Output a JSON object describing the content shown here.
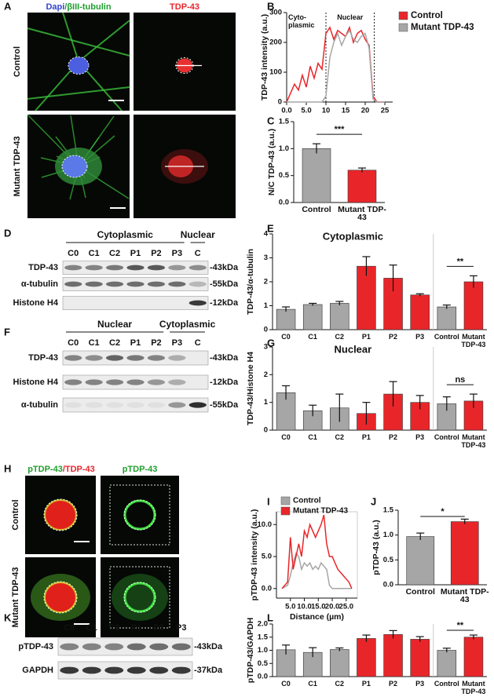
{
  "panels": {
    "A": {
      "letter": "A",
      "title_parts": [
        {
          "text": "Dapi",
          "color": "#3344cc"
        },
        {
          "text": "/βIII-tubulin",
          "color": "#1e9e2e"
        }
      ],
      "channel": {
        "text": "TDP-43",
        "color": "#e8262a"
      },
      "rows": [
        "Control",
        "Mutant TDP-43"
      ]
    },
    "D": {
      "letter": "D",
      "groups": [
        "Cytoplasmic",
        "Nuclear"
      ],
      "lanes": [
        "C0",
        "C1",
        "C2",
        "P1",
        "P2",
        "P3",
        "C"
      ],
      "rows": [
        "TDP-43",
        "α-tubulin",
        "Histone H4"
      ],
      "sizes": [
        "-43kDa",
        "-55kDa",
        "-12kDa"
      ]
    },
    "F": {
      "letter": "F",
      "groups": [
        "Nuclear",
        "Cytoplasmic"
      ],
      "lanes": [
        "C0",
        "C1",
        "C2",
        "P1",
        "P2",
        "P3",
        "C"
      ],
      "rows": [
        "TDP-43",
        "Histone H4",
        "α-tubulin"
      ],
      "sizes": [
        "-43kDa",
        "-12kDa",
        "-55kDa"
      ]
    },
    "H": {
      "letter": "H",
      "title_parts": [
        {
          "text": "pTDP-43",
          "color": "#1e9e2e"
        },
        {
          "text": "/TDP-43",
          "color": "#e8262a"
        }
      ],
      "channel": {
        "text": "pTDP-43",
        "color": "#1e9e2e"
      },
      "rows": [
        "Control",
        "Mutant TDP-43"
      ]
    },
    "K": {
      "letter": "K",
      "lanes": [
        "C0",
        "C1",
        "C2",
        "P1",
        "P2",
        "P3"
      ],
      "rows": [
        "pTDP-43",
        "GAPDH"
      ],
      "sizes": [
        "-43kDa",
        "-37kDa"
      ]
    }
  },
  "chart_data": [
    {
      "type": "line",
      "panel": "B",
      "y_label": "TDP-43 intensity (a.u.)",
      "annotations": [
        "Cyto-plasmic",
        "Nuclear"
      ],
      "vlines": [
        10,
        22.3
      ],
      "legend": "right",
      "x": [
        0,
        1,
        2,
        3,
        4,
        5,
        6,
        7,
        8,
        9,
        10,
        11,
        12,
        13,
        14,
        15,
        16,
        17,
        18,
        19,
        20,
        21,
        22,
        23,
        24,
        25
      ],
      "series": [
        {
          "name": "Control",
          "color": "#e8262a",
          "values": [
            0,
            30,
            60,
            40,
            90,
            50,
            120,
            80,
            130,
            110,
            230,
            250,
            210,
            240,
            230,
            220,
            250,
            200,
            230,
            240,
            210,
            190,
            20,
            0,
            0,
            0
          ]
        },
        {
          "name": "Mutant TDP-43",
          "color": "#a6a6a6",
          "values": [
            0,
            0,
            0,
            0,
            0,
            0,
            0,
            0,
            0,
            0,
            20,
            150,
            200,
            230,
            190,
            220,
            240,
            210,
            200,
            220,
            230,
            180,
            10,
            0,
            0,
            0
          ]
        }
      ],
      "xlim": [
        0,
        27
      ],
      "xticks": [
        {
          "value": 0,
          "label": "0.0"
        },
        {
          "value": 5,
          "label": "5.0"
        },
        10,
        15,
        20,
        25
      ],
      "ylim": [
        0,
        300
      ],
      "yticks": [
        0,
        100,
        200,
        300
      ]
    },
    {
      "type": "bar",
      "panel": "C",
      "y_label": "N/C TDP-43 (a.u.)",
      "significance": "***",
      "categories": [
        "Control",
        "Mutant TDP-43"
      ],
      "values": [
        1.0,
        0.6
      ],
      "errors": [
        0.09,
        0.04
      ],
      "colors": [
        "#a6a6a6",
        "#e8262a"
      ],
      "ylim": [
        0,
        1.5
      ],
      "yticks": [
        {
          "value": 0,
          "label": "0.0"
        },
        0.5,
        {
          "value": 1,
          "label": "1.0"
        },
        1.5
      ]
    },
    {
      "type": "bar",
      "panel": "E",
      "subtitle": "Cytoplasmic",
      "y_label": "TDP-43/α-tubulin",
      "significance": "**",
      "categories": [
        "C0",
        "C1",
        "C2",
        "P1",
        "P2",
        "P3",
        "Control",
        "Mutant TDP-43"
      ],
      "values": [
        0.85,
        1.05,
        1.1,
        2.65,
        2.15,
        1.45,
        0.95,
        2.0
      ],
      "errors": [
        0.1,
        0.05,
        0.08,
        0.4,
        0.55,
        0.05,
        0.08,
        0.25
      ],
      "colors": [
        "#a6a6a6",
        "#a6a6a6",
        "#a6a6a6",
        "#e8262a",
        "#e8262a",
        "#e8262a",
        "#a6a6a6",
        "#e8262a"
      ],
      "ylim": [
        0,
        4
      ],
      "yticks": [
        0,
        1,
        2,
        3,
        4
      ]
    },
    {
      "type": "bar",
      "panel": "G",
      "subtitle": "Nuclear",
      "y_label": "TDP-43/Histone H4",
      "significance": "ns",
      "categories": [
        "C0",
        "C1",
        "C2",
        "P1",
        "P2",
        "P3",
        "Control",
        "Mutant TDP-43"
      ],
      "values": [
        1.35,
        0.7,
        0.8,
        0.6,
        1.3,
        1.0,
        0.95,
        1.05
      ],
      "errors": [
        0.25,
        0.2,
        0.5,
        0.4,
        0.45,
        0.25,
        0.25,
        0.25
      ],
      "colors": [
        "#a6a6a6",
        "#a6a6a6",
        "#a6a6a6",
        "#e8262a",
        "#e8262a",
        "#e8262a",
        "#a6a6a6",
        "#e8262a"
      ],
      "ylim": [
        0,
        3
      ],
      "yticks": [
        0,
        1,
        2,
        3
      ]
    },
    {
      "type": "line",
      "panel": "I",
      "y_label": "pTDP-43 intensity (a.u.)",
      "x_label": "Distance (µm)",
      "legend": "top",
      "x": [
        2,
        4,
        5,
        6,
        7,
        8,
        9,
        10,
        11,
        12,
        13,
        14,
        15,
        16,
        17,
        18,
        19,
        20,
        21,
        22,
        23,
        24,
        25,
        26,
        27
      ],
      "series": [
        {
          "name": "Control",
          "color": "#a6a6a6",
          "values": [
            0,
            0.5,
            2,
            4,
            5.5,
            5,
            3,
            4,
            3.5,
            4,
            3,
            3.5,
            3,
            4,
            3.5,
            3,
            0.5,
            0,
            0,
            0,
            0,
            0,
            0,
            0,
            0
          ]
        },
        {
          "name": "Mutant TDP-43",
          "color": "#e8262a",
          "values": [
            0,
            1,
            8,
            3,
            5,
            7,
            5,
            9,
            8,
            10,
            9,
            8,
            9,
            10,
            11.5,
            7,
            5,
            5,
            4,
            3,
            2.5,
            2,
            1.5,
            1,
            0
          ]
        }
      ],
      "xlim": [
        0,
        29
      ],
      "xticks": [
        {
          "value": 5,
          "label": "5.0"
        },
        {
          "value": 10,
          "label": "10.0"
        },
        {
          "value": 15,
          "label": "15.0"
        },
        {
          "value": 20,
          "label": "20.0"
        },
        {
          "value": 25,
          "label": "25.0"
        }
      ],
      "ylim": [
        -1.5,
        12
      ],
      "yticks": [
        {
          "value": 0,
          "label": "0.0"
        },
        {
          "value": 5,
          "label": "5.0"
        },
        {
          "value": 10,
          "label": "10.0"
        }
      ]
    },
    {
      "type": "bar",
      "panel": "J",
      "y_label": "pTDP-43 (a.u.)",
      "significance": "*",
      "categories": [
        "Control",
        "Mutant TDP-43"
      ],
      "values": [
        0.97,
        1.27
      ],
      "errors": [
        0.07,
        0.05
      ],
      "colors": [
        "#a6a6a6",
        "#e8262a"
      ],
      "ylim": [
        0,
        1.5
      ],
      "yticks": [
        {
          "value": 0,
          "label": "0.0"
        },
        0.5,
        {
          "value": 1,
          "label": "1.0"
        },
        1.5
      ]
    },
    {
      "type": "bar",
      "panel": "L",
      "y_label": "pTDP-43/GAPDH",
      "significance": "**",
      "categories": [
        "C0",
        "C1",
        "C2",
        "P1",
        "P2",
        "P3",
        "Control",
        "Mutant TDP-43"
      ],
      "values": [
        1.02,
        0.92,
        1.03,
        1.45,
        1.6,
        1.42,
        1.0,
        1.5
      ],
      "errors": [
        0.18,
        0.18,
        0.06,
        0.13,
        0.15,
        0.1,
        0.08,
        0.08
      ],
      "colors": [
        "#a6a6a6",
        "#a6a6a6",
        "#a6a6a6",
        "#e8262a",
        "#e8262a",
        "#e8262a",
        "#a6a6a6",
        "#e8262a"
      ],
      "ylim": [
        0,
        2
      ],
      "yticks": [
        {
          "value": 0,
          "label": "0.0"
        },
        0.5,
        {
          "value": 1,
          "label": "1.0"
        },
        1.5,
        {
          "value": 2,
          "label": "2.0"
        }
      ]
    }
  ]
}
